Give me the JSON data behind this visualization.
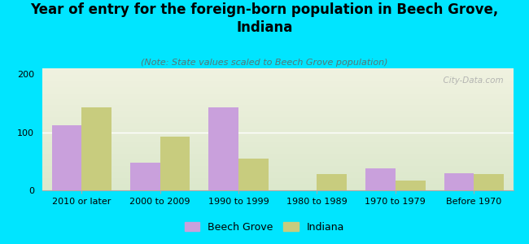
{
  "title": "Year of entry for the foreign-born population in Beech Grove,\nIndiana",
  "subtitle": "(Note: State values scaled to Beech Grove population)",
  "categories": [
    "2010 or later",
    "2000 to 2009",
    "1990 to 1999",
    "1980 to 1989",
    "1970 to 1979",
    "Before 1970"
  ],
  "beech_grove": [
    112,
    47,
    143,
    0,
    38,
    30
  ],
  "indiana": [
    143,
    93,
    55,
    28,
    17,
    28
  ],
  "beech_grove_color": "#c9a0dc",
  "indiana_color": "#c8cc7e",
  "background_color": "#00e5ff",
  "plot_bg_top": "#f0f2e0",
  "plot_bg_bottom": "#dce8cc",
  "ylim": [
    0,
    210
  ],
  "yticks": [
    0,
    100,
    200
  ],
  "bar_width": 0.38,
  "title_fontsize": 12,
  "subtitle_fontsize": 8,
  "tick_fontsize": 8,
  "legend_fontsize": 9,
  "watermark": "  City-Data.com"
}
